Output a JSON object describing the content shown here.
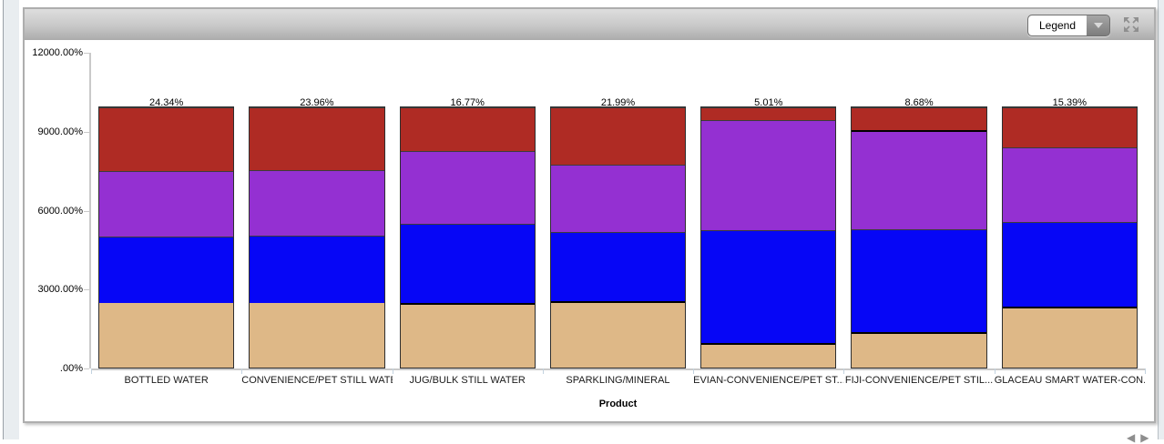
{
  "toolbar": {
    "legend_label": "Legend"
  },
  "pager": {
    "prev": "◀",
    "next": "▶"
  },
  "chart_data": {
    "type": "bar",
    "stacked": true,
    "title": "",
    "xlabel": "Product",
    "ylabel": "",
    "ylim": [
      0,
      12000
    ],
    "grid": false,
    "legend_position": "collapsed-dropdown",
    "bar_total_pct": 9960,
    "y_ticks": [
      {
        "label": ".00%",
        "value": 0
      },
      {
        "label": "3000.00%",
        "value": 3000
      },
      {
        "label": "6000.00%",
        "value": 6000
      },
      {
        "label": "9000.00%",
        "value": 9000
      },
      {
        "label": "12000.00%",
        "value": 12000
      }
    ],
    "categories": [
      "BOTTLED WATER",
      "CONVENIENCE/PET STILL WATER",
      "JUG/BULK STILL WATER",
      "SPARKLING/MINERAL",
      "EVIAN-CONVENIENCE/PET ST...",
      "FIJI-CONVENIENCE/PET STIL...",
      "GLACEAU SMART WATER-CON..."
    ],
    "series": [
      {
        "name": "segment-bottom-tan",
        "color": "#DEB887",
        "values": [
          24.86,
          24.93,
          25,
          25.7,
          9.4,
          13.69,
          23.3
        ],
        "labels": [
          "24.86%",
          "24.93%",
          "25%",
          "25.7%",
          "9.4%",
          "13.69%",
          "23.3%"
        ],
        "thick_top": [
          false,
          false,
          true,
          true,
          true,
          true,
          true
        ]
      },
      {
        "name": "segment-blue",
        "color": "#0606F6",
        "values": [
          25.52,
          25.72,
          30.37,
          26.56,
          43.36,
          39.43,
          32.67
        ],
        "labels": [
          "25.52%",
          "25.72%",
          "30.37%",
          "26.56%",
          "43.36%",
          "39.43%",
          "32.67%"
        ],
        "thick_top": [
          false,
          false,
          false,
          false,
          false,
          false,
          false
        ]
      },
      {
        "name": "segment-purple",
        "color": "#9430D2",
        "values": [
          25.29,
          25.38,
          27.86,
          25.75,
          42.22,
          38.21,
          28.65
        ],
        "labels": [
          "25.29%",
          "25.38%",
          "27.86%",
          "25.75%",
          "42.22%",
          "38.21%",
          "28.65%"
        ],
        "thick_top": [
          false,
          false,
          false,
          false,
          false,
          true,
          false
        ]
      },
      {
        "name": "segment-top-red",
        "color": "#AF2B24",
        "values": [
          24.34,
          23.96,
          16.77,
          21.99,
          5.01,
          8.68,
          15.39
        ],
        "labels": [
          "24.34%",
          "23.96%",
          "16.77%",
          "21.99%",
          "5.01%",
          "8.68%",
          "15.39%"
        ],
        "thick_top": [
          false,
          false,
          false,
          false,
          false,
          false,
          false
        ]
      }
    ]
  }
}
